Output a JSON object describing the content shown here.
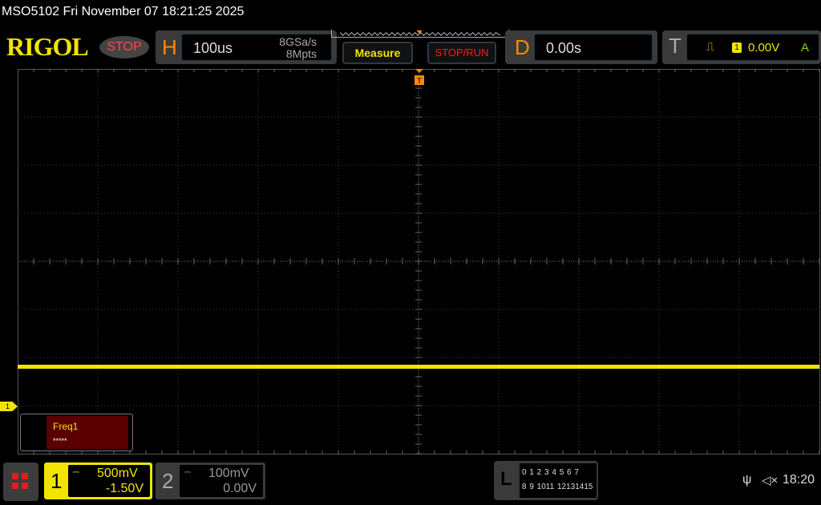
{
  "title": "MSO5102  Fri November 07 18:21:25 2025",
  "logo": "RIGOL",
  "run_state": "STOP",
  "horizontal": {
    "label": "H",
    "timebase": "100us",
    "sample_rate": "8GSa/s",
    "memory_depth": "8Mpts"
  },
  "buttons": {
    "measure": "Measure",
    "stop_run": "STOP/RUN"
  },
  "delay": {
    "label": "D",
    "value": "0.00s"
  },
  "trigger": {
    "label": "T",
    "slope_icon": "rising-edge-icon",
    "source": "1",
    "level": "0.00V",
    "mode": "A"
  },
  "trigger_marker": "T",
  "channel1_marker": "1",
  "measurement": {
    "label": "Freq1",
    "value": "*****"
  },
  "ch1": {
    "number": "1",
    "coupling_icon": "dc-coupling-icon",
    "scale": "500mV",
    "offset": "-1.50V",
    "color": "#f2e400"
  },
  "ch2": {
    "number": "2",
    "coupling_icon": "dc-coupling-icon",
    "scale": "100mV",
    "offset": "0.00V"
  },
  "logic": {
    "label": "L",
    "row1": "0 1 2 3  4 5 6 7",
    "row2": "8 9 1011 12131415"
  },
  "status": {
    "usb_icon": "usb-icon",
    "sound_icon": "speaker-muted-icon",
    "time": "18:20"
  },
  "waveform": {
    "ch1_level_divisions_above_center": -2.2
  }
}
